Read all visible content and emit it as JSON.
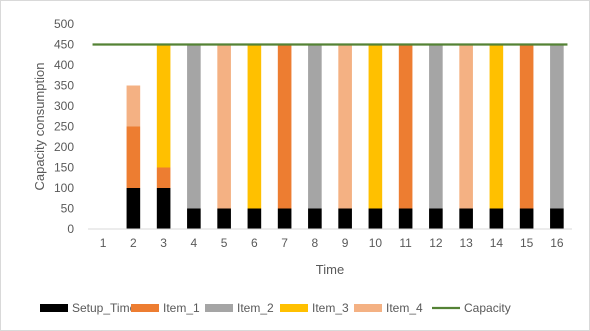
{
  "chart_data": {
    "type": "bar",
    "stacked": true,
    "xlabel": "Time",
    "ylabel": "Capacity consumption",
    "ylim": [
      0,
      500
    ],
    "y_ticks": [
      0,
      50,
      100,
      150,
      200,
      250,
      300,
      350,
      400,
      450,
      500
    ],
    "grid": false,
    "legend_position": "bottom",
    "categories": [
      "1",
      "2",
      "3",
      "4",
      "5",
      "6",
      "7",
      "8",
      "9",
      "10",
      "11",
      "12",
      "13",
      "14",
      "15",
      "16"
    ],
    "series": [
      {
        "name": "Setup_Time",
        "color": "#000000",
        "values": [
          0,
          100,
          100,
          50,
          50,
          50,
          50,
          50,
          50,
          50,
          50,
          50,
          50,
          50,
          50,
          50
        ]
      },
      {
        "name": "Item_1",
        "color": "#ed7d31",
        "values": [
          0,
          150,
          50,
          0,
          0,
          0,
          400,
          0,
          0,
          0,
          400,
          0,
          0,
          0,
          400,
          0
        ]
      },
      {
        "name": "Item_2",
        "color": "#a5a5a5",
        "values": [
          0,
          0,
          0,
          400,
          0,
          0,
          0,
          400,
          0,
          0,
          0,
          400,
          0,
          0,
          0,
          400
        ]
      },
      {
        "name": "Item_3",
        "color": "#ffc000",
        "values": [
          0,
          0,
          300,
          0,
          0,
          400,
          0,
          0,
          0,
          400,
          0,
          0,
          0,
          400,
          0,
          0
        ]
      },
      {
        "name": "Item_4",
        "color": "#f4b183",
        "values": [
          0,
          100,
          0,
          0,
          400,
          0,
          0,
          0,
          400,
          0,
          0,
          0,
          400,
          0,
          0,
          0
        ]
      }
    ],
    "line_series": [
      {
        "name": "Capacity",
        "color": "#548235",
        "values": [
          450,
          450,
          450,
          450,
          450,
          450,
          450,
          450,
          450,
          450,
          450,
          450,
          450,
          450,
          450,
          450
        ]
      }
    ]
  }
}
